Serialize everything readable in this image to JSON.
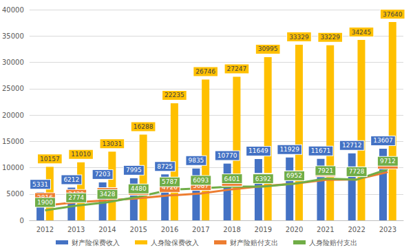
{
  "chart_data": {
    "type": "bar",
    "categories": [
      "2012",
      "2013",
      "2014",
      "2015",
      "2016",
      "2017",
      "2018",
      "2019",
      "2020",
      "2021",
      "2022",
      "2023"
    ],
    "series": [
      {
        "name": "财产险保费收入",
        "type": "bar",
        "color": "#4472c4",
        "values": [
          5331,
          6212,
          7203,
          7995,
          8725,
          9835,
          10770,
          11649,
          11929,
          11671,
          12712,
          13607
        ]
      },
      {
        "name": "人身险保费收入",
        "type": "bar",
        "color": "#ffc000",
        "values": [
          10157,
          11010,
          13031,
          16288,
          22235,
          26746,
          27247,
          30995,
          33329,
          33229,
          34245,
          37640
        ]
      },
      {
        "name": "财产险赔付支出",
        "type": "line",
        "color": "#ed7d31",
        "values": [
          2816,
          3439,
          3788,
          4194,
          4726,
          5087,
          5897,
          6502,
          6955,
          7688,
          7757,
          9171
        ]
      },
      {
        "name": "人身险赔付支出",
        "type": "line",
        "color": "#70ad47",
        "values": [
          1900,
          2774,
          3428,
          4480,
          5787,
          6093,
          6401,
          6392,
          6952,
          7921,
          7728,
          9712
        ]
      }
    ],
    "ylim": [
      0,
      40000
    ],
    "yticks": [
      0,
      5000,
      10000,
      15000,
      20000,
      25000,
      30000,
      35000,
      40000
    ],
    "grid": true,
    "legend": "bottom",
    "data_labels": true
  }
}
